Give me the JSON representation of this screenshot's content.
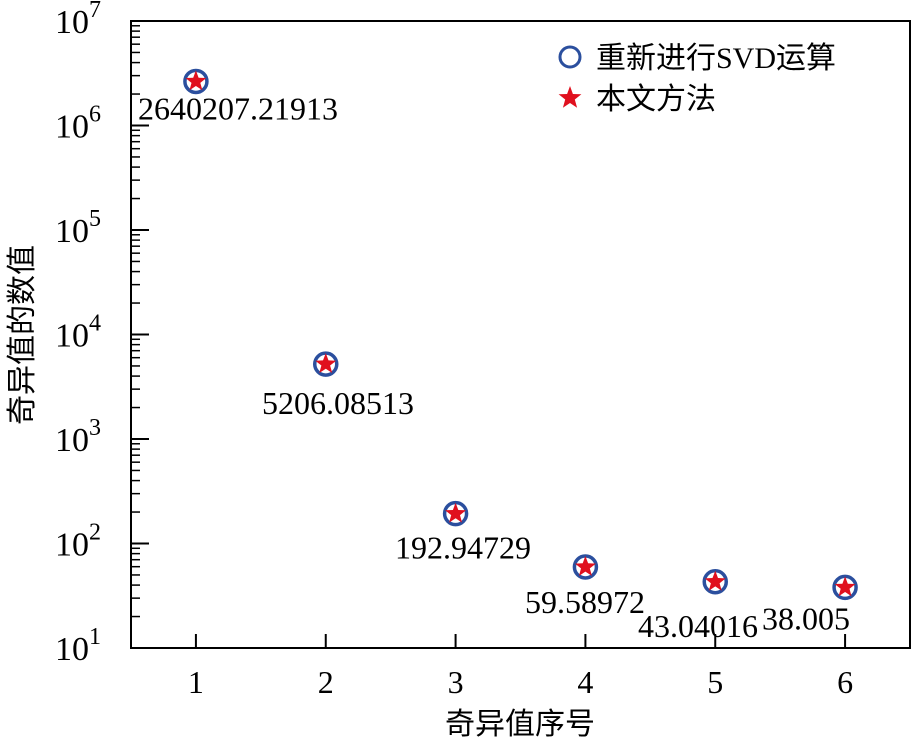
{
  "chart_data": {
    "type": "scatter",
    "title": "",
    "xlabel": "奇异值序号",
    "ylabel": "奇异值的数值",
    "xlim": [
      0.5,
      6.5
    ],
    "ylim": [
      10,
      10000000
    ],
    "yscale": "log",
    "grid": false,
    "legend_position": "top-right",
    "x_ticks": [
      "1",
      "2",
      "3",
      "4",
      "5",
      "6"
    ],
    "y_ticks": [
      {
        "base": "10",
        "exp": "1"
      },
      {
        "base": "10",
        "exp": "2"
      },
      {
        "base": "10",
        "exp": "3"
      },
      {
        "base": "10",
        "exp": "4"
      },
      {
        "base": "10",
        "exp": "5"
      },
      {
        "base": "10",
        "exp": "6"
      },
      {
        "base": "10",
        "exp": "7"
      }
    ],
    "x": [
      1,
      2,
      3,
      4,
      5,
      6
    ],
    "series": [
      {
        "name": "重新进行SVD运算",
        "marker": "circle",
        "color": "#2b4f9e",
        "values": [
          2640207.21913,
          5206.08513,
          192.94729,
          59.58972,
          43.04016,
          38.005
        ]
      },
      {
        "name": "本文方法",
        "marker": "star",
        "color": "#e0101e",
        "values": [
          2640207.21913,
          5206.08513,
          192.94729,
          59.58972,
          43.04016,
          38.005
        ]
      }
    ],
    "data_labels": [
      "2640207.21913",
      "5206.08513",
      "192.94729",
      "59.58972",
      "43.04016",
      "38.005"
    ]
  }
}
